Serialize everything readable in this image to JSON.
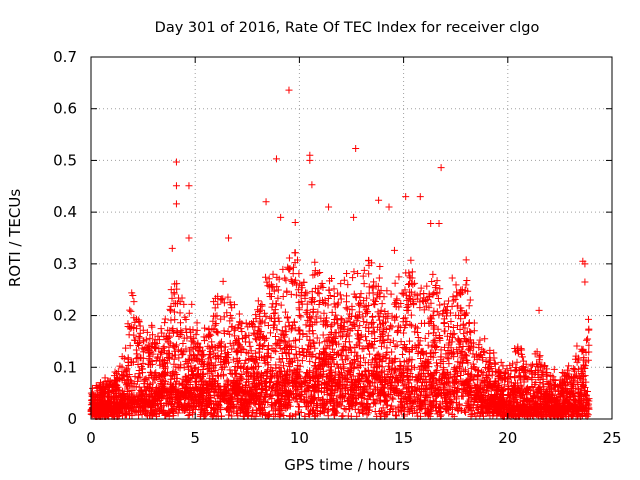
{
  "chart_data": {
    "type": "scatter",
    "title": "Day 301 of 2016, Rate Of TEC Index for receiver clgo",
    "xlabel": "GPS time / hours",
    "ylabel": "ROTI / TECUs",
    "xlim": [
      0,
      25
    ],
    "ylim": [
      0,
      0.7
    ],
    "xticks": [
      0,
      5,
      10,
      15,
      20,
      25
    ],
    "yticks": [
      0,
      0.1,
      0.2,
      0.3,
      0.4,
      0.5,
      0.6,
      0.7
    ],
    "xtick_labels": [
      "0",
      "5",
      "10",
      "15",
      "20",
      "25"
    ],
    "ytick_labels": [
      "0",
      "0.1",
      "0.2",
      "0.3",
      "0.4",
      "0.5",
      "0.6",
      "0.7"
    ],
    "grid": true,
    "marker": "+",
    "color": "#ff0000",
    "time_range_hours": [
      0,
      23.9
    ],
    "outliers": [
      {
        "x": 9.5,
        "y": 0.636
      },
      {
        "x": 4.1,
        "y": 0.497
      },
      {
        "x": 4.1,
        "y": 0.451
      },
      {
        "x": 4.7,
        "y": 0.451
      },
      {
        "x": 4.1,
        "y": 0.416
      },
      {
        "x": 8.9,
        "y": 0.503
      },
      {
        "x": 10.5,
        "y": 0.51
      },
      {
        "x": 10.5,
        "y": 0.5
      },
      {
        "x": 10.6,
        "y": 0.453
      },
      {
        "x": 12.7,
        "y": 0.523
      },
      {
        "x": 16.8,
        "y": 0.486
      },
      {
        "x": 15.1,
        "y": 0.43
      },
      {
        "x": 15.8,
        "y": 0.43
      },
      {
        "x": 13.8,
        "y": 0.423
      },
      {
        "x": 8.4,
        "y": 0.42
      },
      {
        "x": 11.4,
        "y": 0.41
      },
      {
        "x": 14.3,
        "y": 0.41
      },
      {
        "x": 9.1,
        "y": 0.39
      },
      {
        "x": 12.6,
        "y": 0.39
      },
      {
        "x": 9.8,
        "y": 0.38
      },
      {
        "x": 16.3,
        "y": 0.378
      },
      {
        "x": 16.7,
        "y": 0.378
      },
      {
        "x": 23.6,
        "y": 0.305
      },
      {
        "x": 23.7,
        "y": 0.3
      },
      {
        "x": 23.7,
        "y": 0.265
      },
      {
        "x": 21.5,
        "y": 0.21
      },
      {
        "x": 4.7,
        "y": 0.35
      },
      {
        "x": 6.6,
        "y": 0.35
      },
      {
        "x": 3.9,
        "y": 0.33
      }
    ],
    "envelope": [
      [
        0.0,
        0.06
      ],
      [
        0.5,
        0.08
      ],
      [
        1.0,
        0.09
      ],
      [
        1.5,
        0.12
      ],
      [
        2.0,
        0.26
      ],
      [
        2.5,
        0.2
      ],
      [
        3.0,
        0.18
      ],
      [
        3.5,
        0.2
      ],
      [
        4.0,
        0.28
      ],
      [
        4.5,
        0.27
      ],
      [
        5.0,
        0.2
      ],
      [
        5.5,
        0.17
      ],
      [
        6.0,
        0.25
      ],
      [
        6.5,
        0.3
      ],
      [
        7.0,
        0.2
      ],
      [
        7.5,
        0.2
      ],
      [
        8.0,
        0.22
      ],
      [
        8.5,
        0.32
      ],
      [
        9.0,
        0.28
      ],
      [
        9.5,
        0.33
      ],
      [
        10.0,
        0.34
      ],
      [
        10.5,
        0.3
      ],
      [
        11.0,
        0.32
      ],
      [
        11.5,
        0.28
      ],
      [
        12.0,
        0.3
      ],
      [
        12.5,
        0.31
      ],
      [
        13.0,
        0.3
      ],
      [
        13.5,
        0.33
      ],
      [
        14.0,
        0.3
      ],
      [
        14.5,
        0.33
      ],
      [
        15.0,
        0.3
      ],
      [
        15.5,
        0.3
      ],
      [
        16.0,
        0.28
      ],
      [
        16.5,
        0.3
      ],
      [
        17.0,
        0.26
      ],
      [
        17.5,
        0.3
      ],
      [
        18.0,
        0.32
      ],
      [
        18.5,
        0.2
      ],
      [
        19.0,
        0.15
      ],
      [
        19.5,
        0.12
      ],
      [
        20.0,
        0.1
      ],
      [
        20.5,
        0.15
      ],
      [
        21.0,
        0.12
      ],
      [
        21.5,
        0.14
      ],
      [
        22.0,
        0.1
      ],
      [
        22.5,
        0.1
      ],
      [
        23.0,
        0.1
      ],
      [
        23.5,
        0.16
      ],
      [
        23.9,
        0.2
      ]
    ],
    "baseline": [
      [
        0.0,
        0.02
      ],
      [
        2.0,
        0.03
      ],
      [
        4.0,
        0.05
      ],
      [
        6.0,
        0.05
      ],
      [
        8.0,
        0.04
      ],
      [
        9.0,
        0.06
      ],
      [
        10.0,
        0.07
      ],
      [
        12.0,
        0.07
      ],
      [
        14.0,
        0.07
      ],
      [
        16.0,
        0.06
      ],
      [
        18.0,
        0.06
      ],
      [
        19.0,
        0.03
      ],
      [
        20.0,
        0.02
      ],
      [
        22.0,
        0.02
      ],
      [
        23.9,
        0.02
      ]
    ]
  }
}
